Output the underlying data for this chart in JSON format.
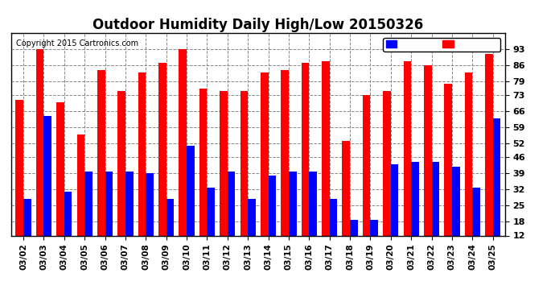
{
  "title": "Outdoor Humidity Daily High/Low 20150326",
  "copyright": "Copyright 2015 Cartronics.com",
  "dates": [
    "03/02",
    "03/03",
    "03/04",
    "03/05",
    "03/06",
    "03/07",
    "03/08",
    "03/09",
    "03/10",
    "03/11",
    "03/12",
    "03/13",
    "03/14",
    "03/15",
    "03/16",
    "03/17",
    "03/18",
    "03/19",
    "03/20",
    "03/21",
    "03/22",
    "03/23",
    "03/24",
    "03/25"
  ],
  "high": [
    71,
    93,
    70,
    56,
    84,
    75,
    83,
    87,
    93,
    76,
    75,
    75,
    83,
    84,
    87,
    88,
    53,
    73,
    75,
    88,
    86,
    78,
    83,
    91
  ],
  "low": [
    28,
    64,
    31,
    40,
    40,
    40,
    39,
    28,
    51,
    33,
    40,
    28,
    38,
    40,
    40,
    28,
    19,
    19,
    43,
    44,
    44,
    42,
    33,
    63
  ],
  "high_color": "#ff0000",
  "low_color": "#0000ff",
  "bg_color": "#ffffff",
  "grid_color": "#888888",
  "ymin": 12,
  "ymax": 100,
  "yticks": [
    12,
    18,
    25,
    32,
    39,
    46,
    52,
    59,
    66,
    73,
    79,
    86,
    93
  ],
  "title_fontsize": 12,
  "copyright_fontsize": 7,
  "tick_fontsize": 8,
  "legend_fontsize": 8
}
